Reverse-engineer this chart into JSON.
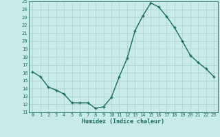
{
  "x": [
    0,
    1,
    2,
    3,
    4,
    5,
    6,
    7,
    8,
    9,
    10,
    11,
    12,
    13,
    14,
    15,
    16,
    17,
    18,
    19,
    20,
    21,
    22,
    23
  ],
  "y": [
    16.1,
    15.5,
    14.2,
    13.8,
    13.3,
    12.2,
    12.2,
    12.2,
    11.5,
    11.7,
    12.9,
    15.5,
    17.8,
    21.3,
    23.2,
    24.8,
    24.3,
    23.1,
    21.7,
    20.0,
    18.2,
    17.3,
    16.5,
    15.5
  ],
  "line_color": "#1a6b5a",
  "marker": "+",
  "marker_size": 3.5,
  "bg_color": "#c8eae8",
  "grid_color": "#aacfcc",
  "xlabel": "Humidex (Indice chaleur)",
  "ylim": [
    11,
    25
  ],
  "xlim_min": -0.5,
  "xlim_max": 23.5,
  "yticks": [
    11,
    12,
    13,
    14,
    15,
    16,
    17,
    18,
    19,
    20,
    21,
    22,
    23,
    24,
    25
  ],
  "xticks": [
    0,
    1,
    2,
    3,
    4,
    5,
    6,
    7,
    8,
    9,
    10,
    11,
    12,
    13,
    14,
    15,
    16,
    17,
    18,
    19,
    20,
    21,
    22,
    23
  ],
  "font_color": "#1a6b5a",
  "tick_fontsize": 5.0,
  "xlabel_fontsize": 6.0,
  "linewidth": 1.0
}
